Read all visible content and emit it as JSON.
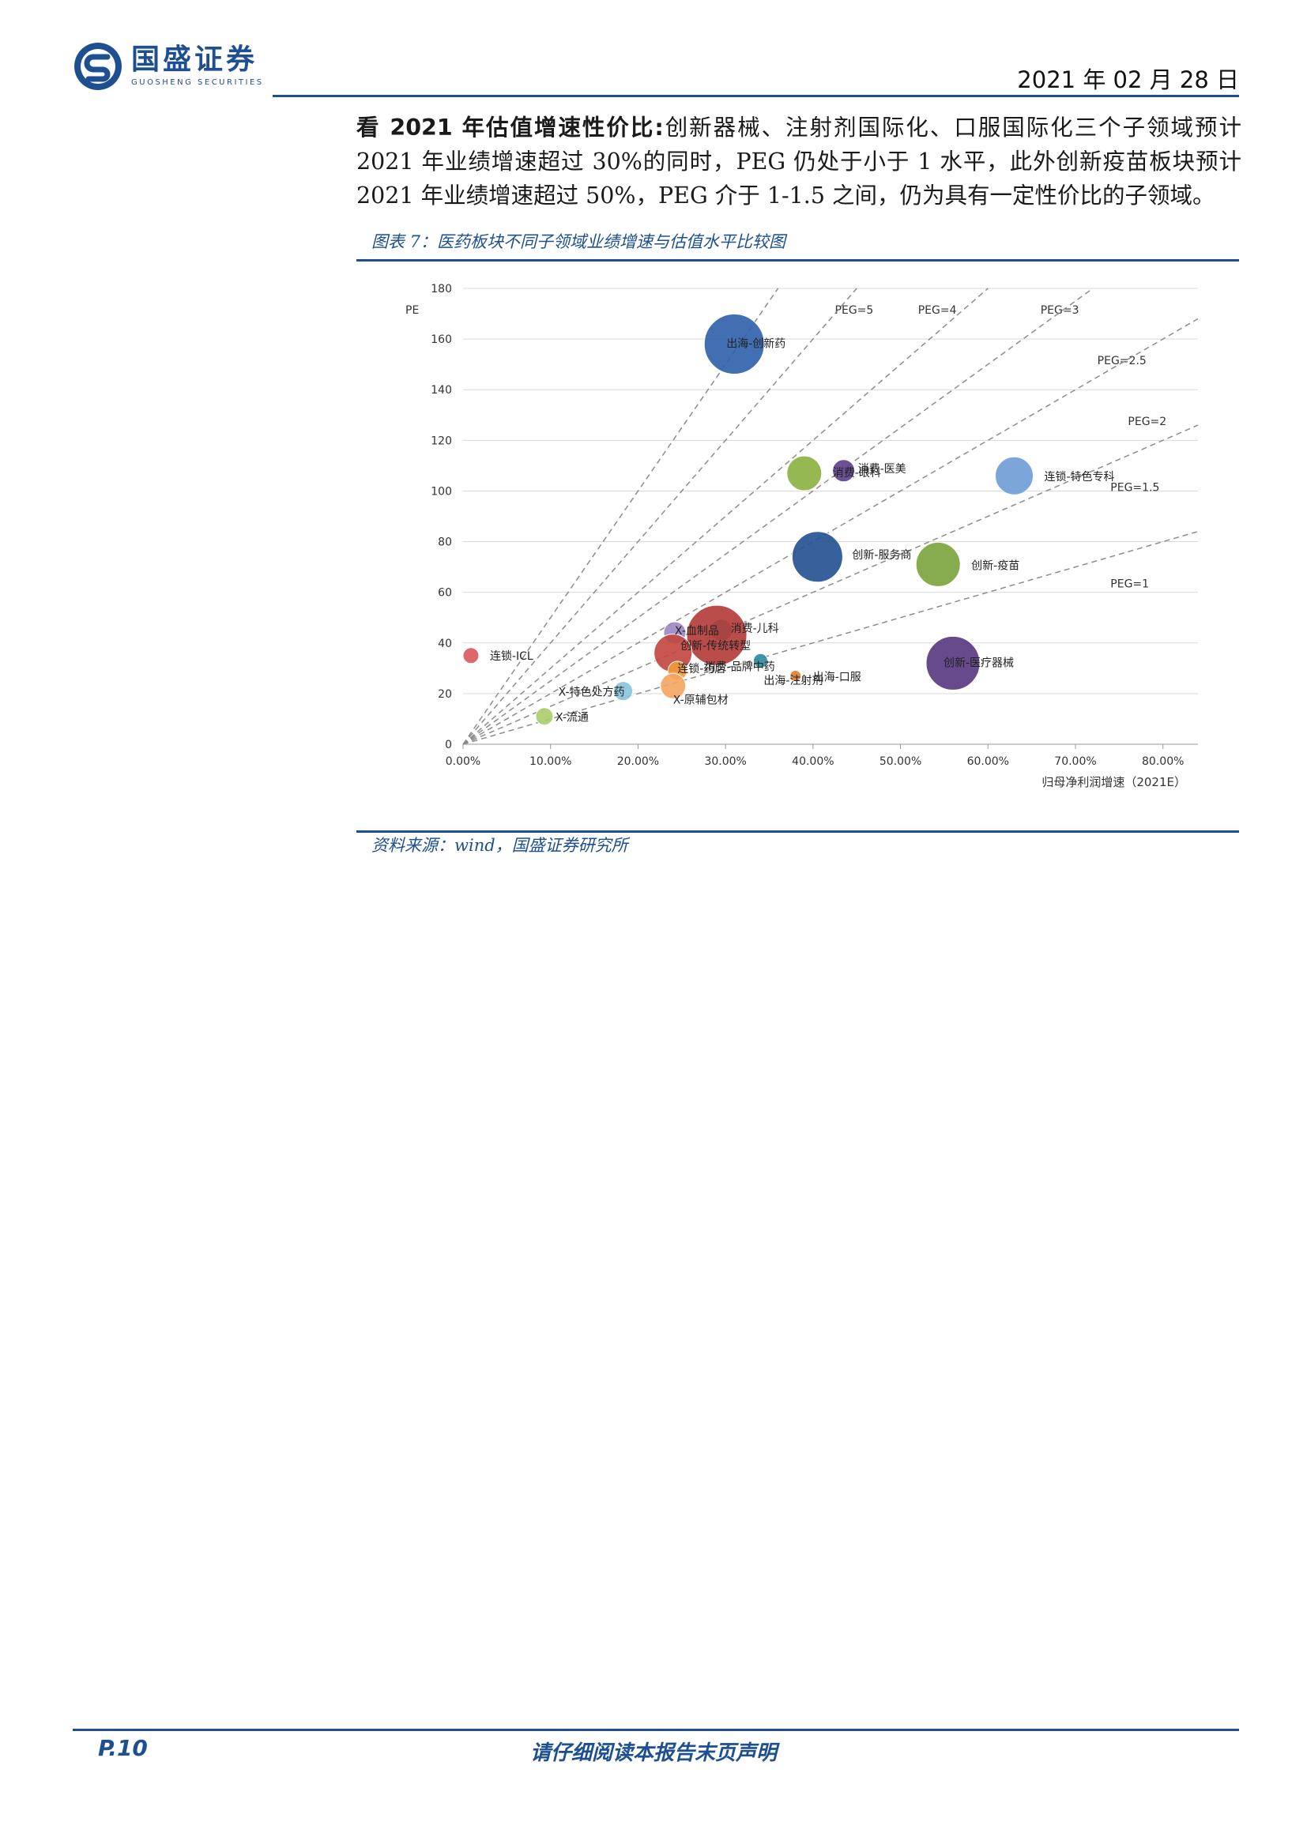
{
  "header": {
    "logo_cn": "国盛证券",
    "logo_en": "GUOSHENG SECURITIES",
    "date": "2021 年 02 月 28 日"
  },
  "body": {
    "lead": "看 2021 年估值增速性价比:",
    "text": "创新器械、注射剂国际化、口服国际化三个子领域预计 2021 年业绩增速超过 30%的同时，PEG 仍处于小于 1 水平，此外创新疫苗板块预计 2021 年业绩增速超过 50%，PEG 介于 1-1.5 之间，仍为具有一定性价比的子领域。"
  },
  "figure": {
    "caption": "图表 7：医药板块不同子领域业绩增速与估值水平比较图",
    "source": "资料来源：wind，国盛证券研究所"
  },
  "chart_data": {
    "type": "scatter",
    "ylabel": "PE",
    "xlabel": "归母净利润增速（2021E）",
    "xlim": [
      0,
      0.84
    ],
    "ylim": [
      0,
      180
    ],
    "xticks": [
      "0.00%",
      "10.00%",
      "20.00%",
      "30.00%",
      "40.00%",
      "50.00%",
      "60.00%",
      "70.00%",
      "80.00%"
    ],
    "yticks": [
      "0",
      "20",
      "40",
      "60",
      "80",
      "100",
      "120",
      "140",
      "160",
      "180"
    ],
    "grid": "horizontal",
    "peg_lines": [
      {
        "label": "PEG=5",
        "peg": 5
      },
      {
        "label": "PEG=4",
        "peg": 4
      },
      {
        "label": "PEG=3",
        "peg": 3
      },
      {
        "label": "PEG=2.5",
        "peg": 2.5
      },
      {
        "label": "PEG=2",
        "peg": 2
      },
      {
        "label": "PEG=1.5",
        "peg": 1.5
      },
      {
        "label": "PEG=1",
        "peg": 1
      }
    ],
    "points": [
      {
        "label": "出海-创新药",
        "x": 0.31,
        "y": 158,
        "color": "#2e5fa8"
      },
      {
        "label": "消费-眼科",
        "x": 0.39,
        "y": 107,
        "color": "#8ab040"
      },
      {
        "label": "消费-医美",
        "x": 0.435,
        "y": 108,
        "color": "#5d3e8c"
      },
      {
        "label": "连锁-特色专科",
        "x": 0.63,
        "y": 106,
        "color": "#6e9bd6"
      },
      {
        "label": "创新-服务商",
        "x": 0.405,
        "y": 74,
        "color": "#224f8f"
      },
      {
        "label": "创新-疫苗",
        "x": 0.543,
        "y": 71,
        "color": "#7aa33a"
      },
      {
        "label": "X-血制品",
        "x": 0.242,
        "y": 44,
        "color": "#9b86c4"
      },
      {
        "label": "消费-儿科",
        "x": 0.295,
        "y": 45,
        "color": "#35a6bd"
      },
      {
        "label": "创新-传统转型",
        "x": 0.29,
        "y": 43,
        "color": "#b23a35"
      },
      {
        "label": "消费-品牌中药",
        "x": 0.24,
        "y": 36,
        "color": "#c3453e"
      },
      {
        "label": "连锁-药店",
        "x": 0.245,
        "y": 29,
        "color": "#f09a3a"
      },
      {
        "label": "连锁-ICL",
        "x": 0.009,
        "y": 35,
        "color": "#d9565a"
      },
      {
        "label": "出海-注射剂",
        "x": 0.34,
        "y": 33,
        "color": "#2b8a9c"
      },
      {
        "label": "出海-口服",
        "x": 0.38,
        "y": 27,
        "color": "#e07b2f"
      },
      {
        "label": "创新-医疗器械",
        "x": 0.56,
        "y": 32,
        "color": "#55367e"
      },
      {
        "label": "X-特色处方药",
        "x": 0.183,
        "y": 21,
        "color": "#86c5dc"
      },
      {
        "label": "X-原辅包材",
        "x": 0.24,
        "y": 23,
        "color": "#f4a560"
      },
      {
        "label": "X-流通",
        "x": 0.093,
        "y": 11,
        "color": "#a8cd6a"
      }
    ]
  },
  "footer": {
    "page": "P.10",
    "disclaimer": "请仔细阅读本报告末页声明"
  }
}
